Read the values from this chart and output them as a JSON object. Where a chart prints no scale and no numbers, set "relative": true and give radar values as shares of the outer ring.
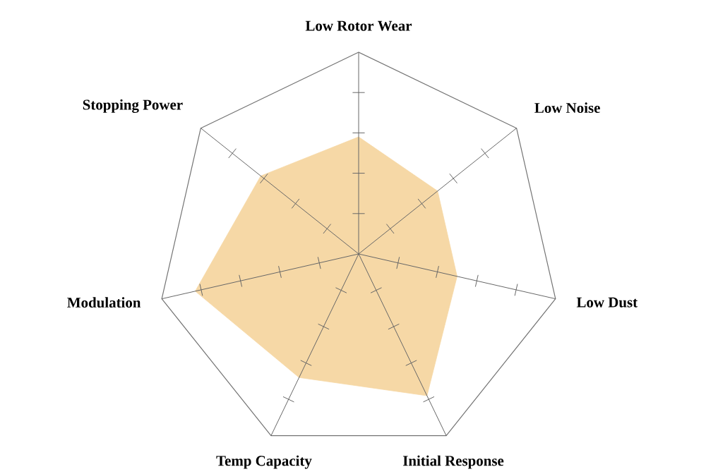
{
  "chart_data": {
    "type": "radar",
    "relative": true,
    "categories": [
      "Low Rotor Wear",
      "Low Noise",
      "Low Dust",
      "Initial Response",
      "Temp Capacity",
      "Modulation",
      "Stopping Power"
    ],
    "series": [
      {
        "color": "#f6d8a6",
        "values": [
          0.58,
          0.5,
          0.5,
          0.78,
          0.68,
          0.83,
          0.62
        ]
      }
    ]
  }
}
